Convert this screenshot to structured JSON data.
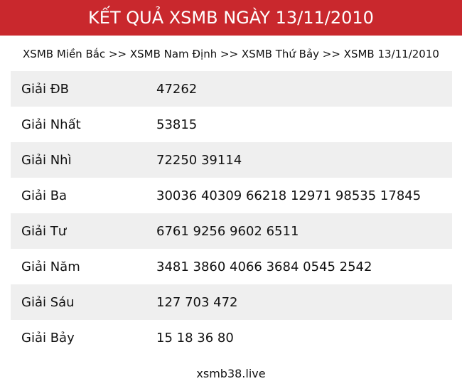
{
  "header": {
    "title": "KẾT QUẢ XSMB NGÀY 13/11/2010"
  },
  "breadcrumb": "XSMB Miền Bắc >> XSMB Nam Định >> XSMB Thứ Bảy >> XSMB 13/11/2010",
  "table": {
    "rows": [
      [
        "Giải ĐB",
        "47262"
      ],
      [
        "Giải Nhất",
        "53815"
      ],
      [
        "Giải Nhì",
        "72250 39114"
      ],
      [
        "Giải Ba",
        "30036 40309 66218 12971 98535 17845"
      ],
      [
        "Giải Tư",
        "6761 9256 9602 6511"
      ],
      [
        "Giải Năm",
        "3481 3860 4066 3684 0545 2542"
      ],
      [
        "Giải Sáu",
        "127 703 472"
      ],
      [
        "Giải Bảy",
        "15 18 36 80"
      ]
    ]
  },
  "footer": "xsmb38.live"
}
